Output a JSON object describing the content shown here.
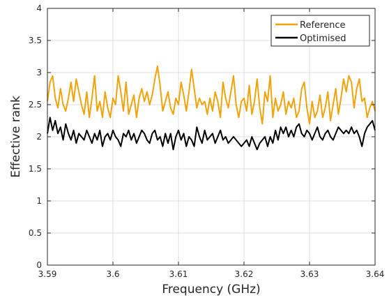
{
  "chart_data": {
    "type": "line",
    "title": "",
    "xlabel": "Frequency (GHz)",
    "ylabel": "Effective rank",
    "xlim": [
      3.59,
      3.64
    ],
    "ylim": [
      0,
      4
    ],
    "xticks": [
      3.59,
      3.6,
      3.61,
      3.62,
      3.63,
      3.64
    ],
    "xtick_labels": [
      "3.59",
      "3.6",
      "3.61",
      "3.62",
      "3.63",
      "3.64"
    ],
    "yticks": [
      0,
      0.5,
      1,
      1.5,
      2,
      2.5,
      3,
      3.5,
      4
    ],
    "ytick_labels": [
      "0",
      "0.5",
      "1",
      "1.5",
      "2",
      "2.5",
      "3",
      "3.5",
      "4"
    ],
    "grid": true,
    "legend_position": "top-right",
    "x": [
      3.59,
      3.5904,
      3.5908,
      3.5912,
      3.5916,
      3.592,
      3.5924,
      3.5928,
      3.5932,
      3.5936,
      3.594,
      3.5944,
      3.5948,
      3.5952,
      3.5956,
      3.596,
      3.5964,
      3.5968,
      3.5972,
      3.5976,
      3.598,
      3.5984,
      3.5988,
      3.5992,
      3.5996,
      3.6,
      3.6004,
      3.6008,
      3.6012,
      3.6016,
      3.602,
      3.6024,
      3.6028,
      3.6032,
      3.6036,
      3.604,
      3.6044,
      3.6048,
      3.6052,
      3.6056,
      3.606,
      3.6064,
      3.6068,
      3.6072,
      3.6076,
      3.608,
      3.6084,
      3.6088,
      3.6092,
      3.6096,
      3.61,
      3.6104,
      3.6108,
      3.6112,
      3.6116,
      3.612,
      3.6124,
      3.6128,
      3.6132,
      3.6136,
      3.614,
      3.6144,
      3.6148,
      3.6152,
      3.6156,
      3.616,
      3.6164,
      3.6168,
      3.6172,
      3.6176,
      3.618,
      3.6184,
      3.6188,
      3.6192,
      3.6196,
      3.62,
      3.6204,
      3.6208,
      3.6212,
      3.6216,
      3.622,
      3.6224,
      3.6228,
      3.6232,
      3.6236,
      3.624,
      3.6244,
      3.6248,
      3.6252,
      3.6256,
      3.626,
      3.6264,
      3.6268,
      3.6272,
      3.6276,
      3.628,
      3.6284,
      3.6288,
      3.6292,
      3.6296,
      3.63,
      3.6304,
      3.6308,
      3.6312,
      3.6316,
      3.632,
      3.6324,
      3.6328,
      3.6332,
      3.6336,
      3.634,
      3.6344,
      3.6348,
      3.6352,
      3.6356,
      3.636,
      3.6364,
      3.6368,
      3.6372,
      3.6376,
      3.638,
      3.6384,
      3.6388,
      3.6392,
      3.6396,
      3.64
    ],
    "series": [
      {
        "name": "Reference",
        "color": "#f0a30a",
        "values": [
          2.55,
          2.85,
          2.95,
          2.6,
          2.45,
          2.75,
          2.5,
          2.4,
          2.6,
          2.85,
          2.55,
          2.9,
          2.7,
          2.5,
          2.35,
          2.7,
          2.3,
          2.6,
          2.95,
          2.4,
          2.55,
          2.3,
          2.7,
          2.45,
          2.3,
          2.6,
          2.5,
          2.95,
          2.7,
          2.4,
          2.85,
          2.35,
          2.5,
          2.65,
          2.3,
          2.6,
          2.75,
          2.55,
          2.7,
          2.5,
          2.65,
          2.9,
          3.1,
          2.8,
          2.4,
          2.55,
          2.7,
          2.45,
          2.35,
          2.6,
          2.5,
          2.85,
          2.65,
          2.4,
          2.7,
          3.05,
          2.75,
          2.45,
          2.6,
          2.5,
          2.55,
          2.35,
          2.6,
          2.4,
          2.7,
          2.55,
          2.3,
          2.85,
          2.6,
          2.45,
          2.7,
          2.95,
          2.5,
          2.3,
          2.55,
          2.6,
          2.4,
          2.8,
          2.35,
          2.55,
          2.9,
          2.45,
          2.2,
          2.7,
          2.55,
          2.95,
          2.3,
          2.6,
          2.4,
          2.5,
          2.7,
          2.35,
          2.55,
          2.45,
          2.6,
          2.3,
          2.4,
          2.75,
          2.85,
          2.45,
          2.2,
          2.55,
          2.3,
          2.4,
          2.65,
          2.3,
          2.45,
          2.7,
          2.25,
          2.5,
          2.75,
          2.35,
          2.6,
          2.9,
          2.7,
          2.95,
          2.85,
          2.45,
          2.75,
          2.9,
          2.55,
          2.6,
          2.3,
          2.45,
          2.55,
          2.4
        ]
      },
      {
        "name": "Optimised",
        "color": "#000000",
        "values": [
          2.05,
          2.3,
          2.1,
          2.25,
          2.05,
          2.15,
          1.95,
          2.2,
          2.05,
          1.95,
          2.1,
          1.9,
          2.05,
          2.0,
          1.95,
          2.1,
          2.0,
          1.9,
          2.05,
          1.95,
          2.1,
          1.85,
          2.0,
          2.05,
          1.95,
          2.1,
          2.0,
          1.95,
          1.85,
          2.05,
          2.0,
          2.1,
          1.95,
          2.05,
          1.9,
          2.0,
          2.1,
          2.05,
          1.95,
          1.9,
          2.05,
          2.1,
          1.95,
          2.0,
          1.85,
          2.05,
          1.9,
          2.05,
          1.8,
          2.0,
          2.1,
          1.95,
          2.05,
          1.85,
          2.0,
          1.95,
          1.85,
          2.15,
          2.0,
          1.9,
          2.1,
          1.95,
          2.0,
          2.05,
          1.9,
          2.0,
          2.1,
          1.95,
          2.0,
          1.9,
          1.95,
          2.0,
          1.95,
          1.9,
          1.85,
          1.9,
          1.95,
          1.85,
          2.0,
          1.9,
          1.8,
          1.9,
          1.95,
          2.0,
          1.85,
          2.0,
          1.9,
          2.1,
          1.95,
          2.15,
          2.05,
          2.15,
          2.0,
          2.1,
          2.0,
          2.15,
          2.2,
          2.05,
          2.0,
          2.1,
          2.05,
          1.95,
          2.05,
          2.15,
          2.0,
          1.95,
          2.05,
          2.1,
          2.0,
          1.95,
          2.05,
          2.15,
          2.1,
          2.05,
          2.1,
          2.05,
          2.15,
          2.05,
          2.1,
          2.0,
          1.85,
          2.05,
          2.15,
          2.2,
          2.25,
          2.1
        ]
      }
    ]
  }
}
